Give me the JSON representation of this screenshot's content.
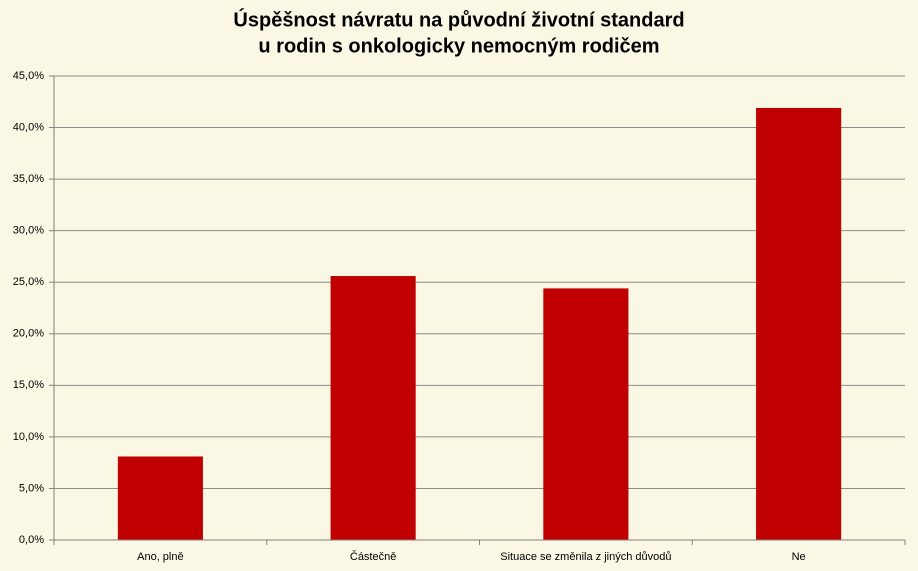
{
  "chart_data": {
    "type": "bar",
    "title": [
      "Úspěšnost návratu na původní životní standard",
      "u rodin s onkologicky nemocným rodičem"
    ],
    "categories": [
      "Ano, plně",
      "Částečně",
      "Situace se změnila z jiných důvodů",
      "Ne"
    ],
    "values": [
      8.1,
      25.6,
      24.4,
      41.9
    ],
    "color": "#c00000",
    "ylim": [
      0,
      45
    ],
    "yticks": [
      {
        "value": 0,
        "label": "0,0%"
      },
      {
        "value": 5,
        "label": "5,0%"
      },
      {
        "value": 10,
        "label": "10,0%"
      },
      {
        "value": 15,
        "label": "15,0%"
      },
      {
        "value": 20,
        "label": "20,0%"
      },
      {
        "value": 25,
        "label": "25,0%"
      },
      {
        "value": 30,
        "label": "30,0%"
      },
      {
        "value": 35,
        "label": "35,0%"
      },
      {
        "value": 40,
        "label": "40,0%"
      },
      {
        "value": 45,
        "label": "45,0%"
      }
    ],
    "grid": true
  }
}
